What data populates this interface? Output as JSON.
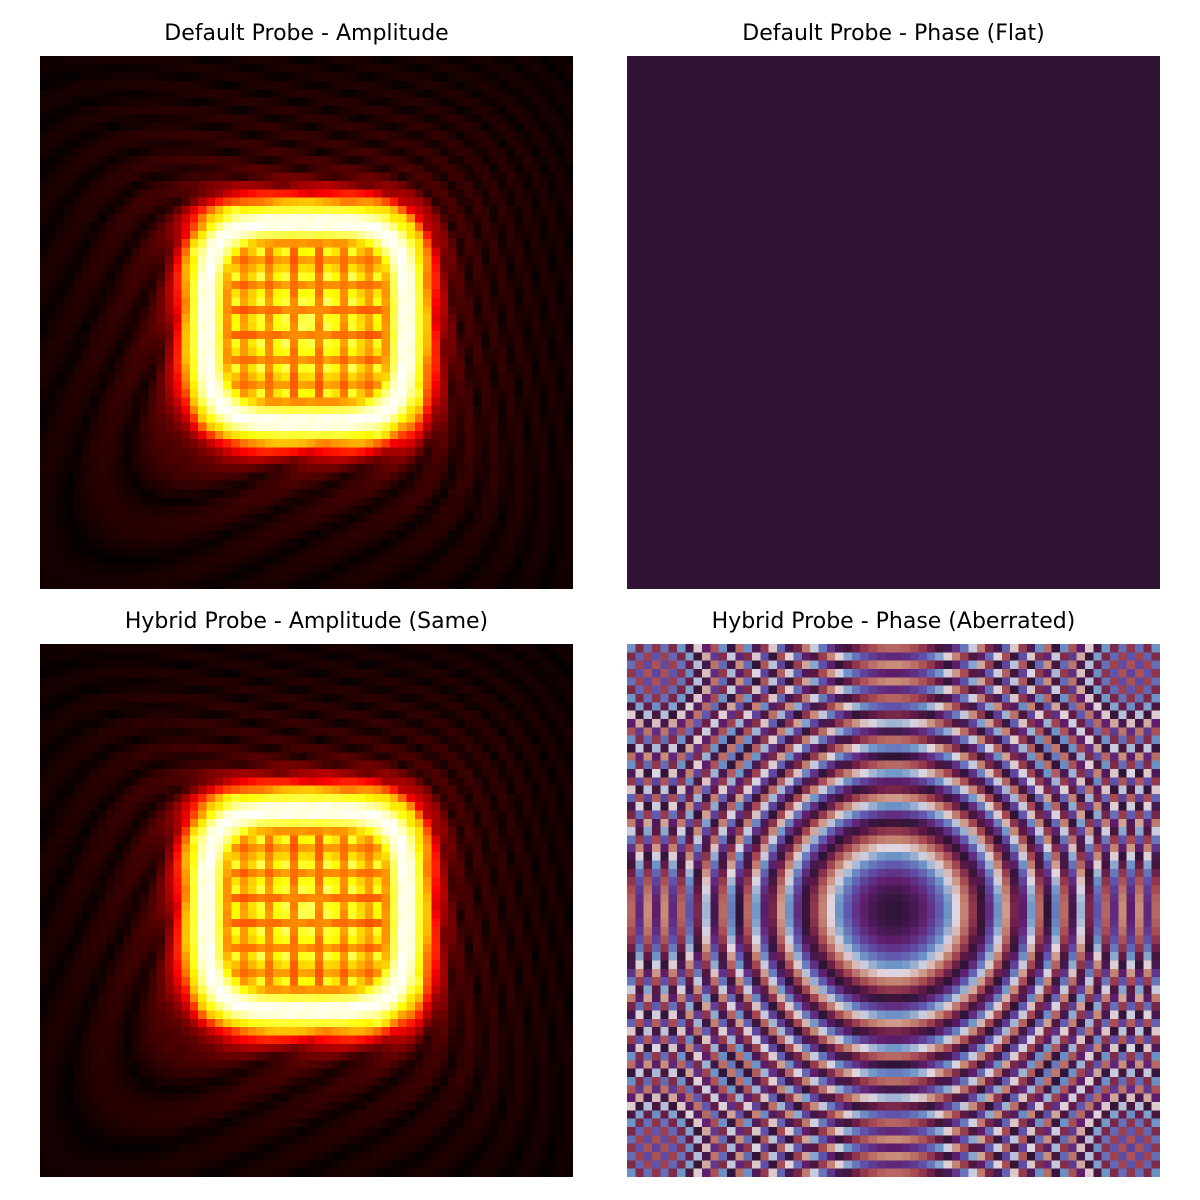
{
  "chart_data": [
    {
      "type": "heatmap",
      "title": "Default Probe - Amplitude",
      "colormap": "hot",
      "grid_size": 64,
      "field": "probe_amplitude",
      "description_of_values": "probe amplitude (Fourier-transformed square aperture)",
      "axes_visible": false
    },
    {
      "type": "heatmap",
      "title": "Default Probe - Phase (Flat)",
      "colormap": "twilight_shifted",
      "grid_size": 64,
      "field": "flat_phase",
      "constant_value": 0,
      "uniform_color": "#2f1533",
      "axes_visible": false
    },
    {
      "type": "heatmap",
      "title": "Hybrid Probe - Amplitude (Same)",
      "colormap": "hot",
      "grid_size": 64,
      "field": "probe_amplitude",
      "axes_visible": false
    },
    {
      "type": "heatmap",
      "title": "Hybrid Probe - Phase (Aberrated)",
      "colormap": "twilight_shifted",
      "grid_size": 64,
      "field": "aberrated_phase",
      "axes_visible": false
    }
  ]
}
